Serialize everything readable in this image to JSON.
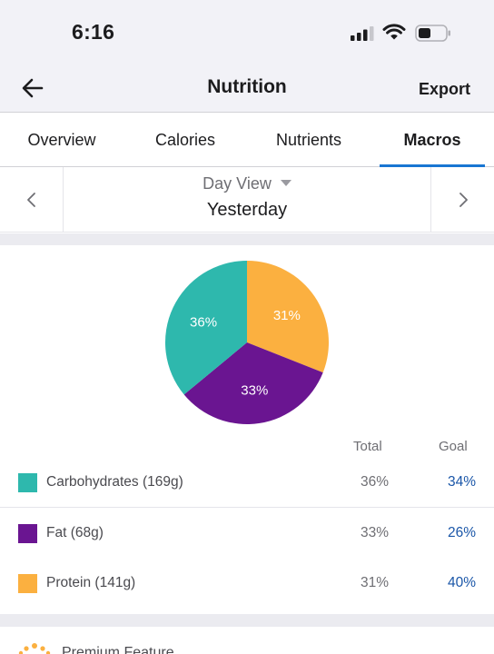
{
  "status_bar": {
    "time": "6:16"
  },
  "nav": {
    "title": "Nutrition",
    "export_label": "Export"
  },
  "tabs": [
    {
      "label": "Overview",
      "active": false
    },
    {
      "label": "Calories",
      "active": false
    },
    {
      "label": "Nutrients",
      "active": false
    },
    {
      "label": "Macros",
      "active": true
    }
  ],
  "day_selector": {
    "view_label": "Day View",
    "day": "Yesterday"
  },
  "chart_data": {
    "type": "pie",
    "slices": [
      {
        "label": "Protein",
        "value": 31,
        "color": "#fbb040",
        "display": "31%"
      },
      {
        "label": "Fat",
        "value": 33,
        "color": "#6a1591",
        "display": "33%"
      },
      {
        "label": "Carbohydrates",
        "value": 36,
        "color": "#2eb8ad",
        "display": "36%"
      }
    ],
    "start": "12 o'clock, clockwise"
  },
  "table": {
    "headers": {
      "total": "Total",
      "goal": "Goal"
    },
    "rows": [
      {
        "label": "Carbohydrates (169g)",
        "total": "36%",
        "goal": "34%",
        "color": "#2eb8ad"
      },
      {
        "label": "Fat (68g)",
        "total": "33%",
        "goal": "26%",
        "color": "#6a1591"
      },
      {
        "label": "Protein (141g)",
        "total": "31%",
        "goal": "40%",
        "color": "#fbb040"
      }
    ]
  },
  "premium": {
    "label": "Premium Feature"
  },
  "icons": {
    "back": "back-arrow-icon",
    "prev": "chevron-left-icon",
    "next": "chevron-right-icon",
    "dropdown": "caret-down-icon",
    "premium": "premium-icon"
  },
  "colors": {
    "accent": "#1976d2",
    "goal_text": "#1a56a8"
  }
}
